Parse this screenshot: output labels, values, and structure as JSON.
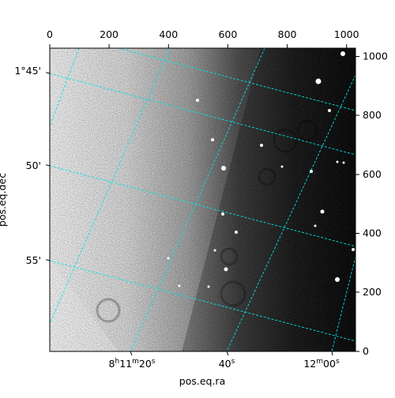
{
  "figure": {
    "xlabel": "pos.eq.ra",
    "ylabel": "pos.eq.dec",
    "colormap": "gray",
    "grid_color": "#00e5e5"
  },
  "pixel_axes": {
    "top": {
      "ticks": [
        0,
        200,
        400,
        600,
        800,
        1000
      ],
      "range": [
        0,
        1030
      ]
    },
    "right": {
      "ticks": [
        0,
        200,
        400,
        600,
        800,
        1000
      ],
      "range": [
        0,
        1030
      ]
    }
  },
  "world_axes": {
    "left": [
      {
        "text": "1°45'"
      },
      {
        "text": "50'"
      },
      {
        "text": "55'"
      }
    ],
    "bottom": [
      {
        "text": "8h11m20s",
        "h": "8",
        "m": "11",
        "s": "20"
      },
      {
        "text": "40s",
        "value": "40",
        "unit": "s"
      },
      {
        "text": "12m00s",
        "m": "12",
        "s": "00"
      }
    ]
  }
}
